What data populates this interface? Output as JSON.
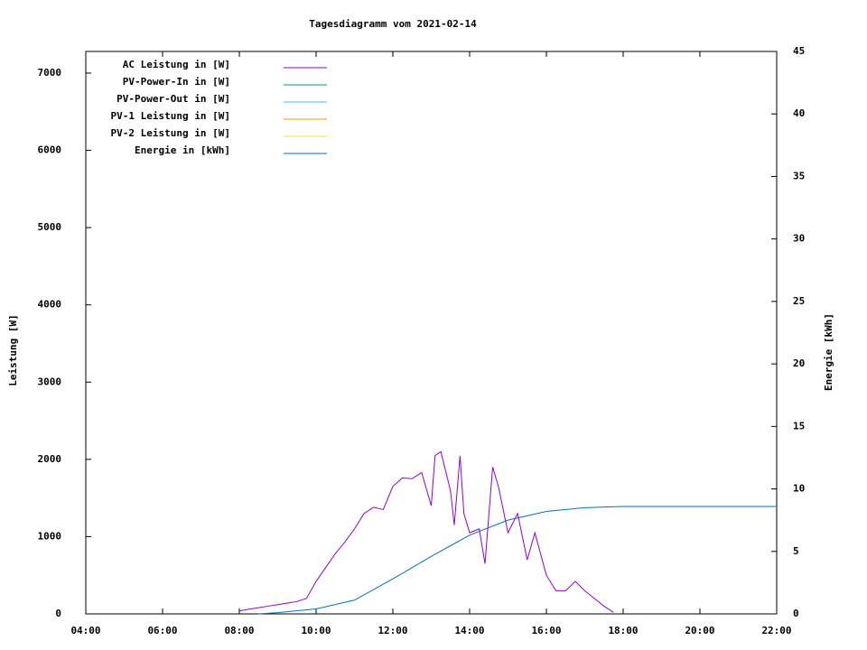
{
  "chart_data": {
    "type": "line",
    "title": "Tagesdiagramm vom 2021-02-14",
    "y_label": "Leistung [W]",
    "y2_label": "Energie [kWh]",
    "xlim": [
      4,
      22
    ],
    "xticks": [
      {
        "value": 4,
        "label": "04:00"
      },
      {
        "value": 6,
        "label": "06:00"
      },
      {
        "value": 8,
        "label": "08:00"
      },
      {
        "value": 10,
        "label": "10:00"
      },
      {
        "value": 12,
        "label": "12:00"
      },
      {
        "value": 14,
        "label": "14:00"
      },
      {
        "value": 16,
        "label": "16:00"
      },
      {
        "value": 18,
        "label": "18:00"
      },
      {
        "value": 20,
        "label": "20:00"
      },
      {
        "value": 22,
        "label": "22:00"
      }
    ],
    "ylim": [
      0,
      7280
    ],
    "yticks": [
      0,
      1000,
      2000,
      3000,
      4000,
      5000,
      6000,
      7000
    ],
    "y2lim": [
      0,
      45
    ],
    "y2ticks": [
      0,
      5,
      10,
      15,
      20,
      25,
      30,
      35,
      40,
      45
    ],
    "series": [
      {
        "name": "AC Leistung in [W]",
        "color": "#9400d3",
        "x": [
          8.0,
          8.25,
          8.5,
          8.75,
          9.0,
          9.25,
          9.5,
          9.75,
          10.0,
          10.25,
          10.5,
          10.75,
          11.0,
          11.25,
          11.5,
          11.75,
          12.0,
          12.25,
          12.5,
          12.75,
          13.0,
          13.1,
          13.25,
          13.5,
          13.6,
          13.75,
          13.85,
          14.0,
          14.25,
          14.4,
          14.6,
          14.75,
          15.0,
          15.25,
          15.5,
          15.7,
          16.0,
          16.25,
          16.5,
          16.75,
          17.0,
          17.25,
          17.5,
          17.75
        ],
        "values": [
          40,
          60,
          80,
          100,
          120,
          140,
          160,
          200,
          420,
          600,
          780,
          930,
          1100,
          1300,
          1380,
          1350,
          1650,
          1760,
          1750,
          1830,
          1400,
          2050,
          2100,
          1600,
          1150,
          2045,
          1300,
          1050,
          1100,
          650,
          1900,
          1650,
          1050,
          1300,
          700,
          1050,
          500,
          300,
          300,
          420,
          300,
          200,
          100,
          20
        ]
      },
      {
        "name": "PV-Power-In in [W]",
        "color": "#009e73",
        "x": [],
        "values": []
      },
      {
        "name": "PV-Power-Out in [W]",
        "color": "#56b4e9",
        "x": [],
        "values": []
      },
      {
        "name": "PV-1 Leistung in [W]",
        "color": "#e69f00",
        "x": [],
        "values": []
      },
      {
        "name": "PV-2 Leistung in [W]",
        "color": "#f0e442",
        "x": [],
        "values": []
      },
      {
        "name": "Energie in [kWh]",
        "color": "#0072b2",
        "axis": "y2",
        "x": [
          8.5,
          9,
          10,
          11,
          12,
          13,
          14,
          15,
          16,
          17,
          18,
          22
        ],
        "values": [
          0,
          0.1,
          0.4,
          1.1,
          2.8,
          4.6,
          6.3,
          7.5,
          8.2,
          8.5,
          8.6,
          8.6
        ]
      }
    ]
  }
}
